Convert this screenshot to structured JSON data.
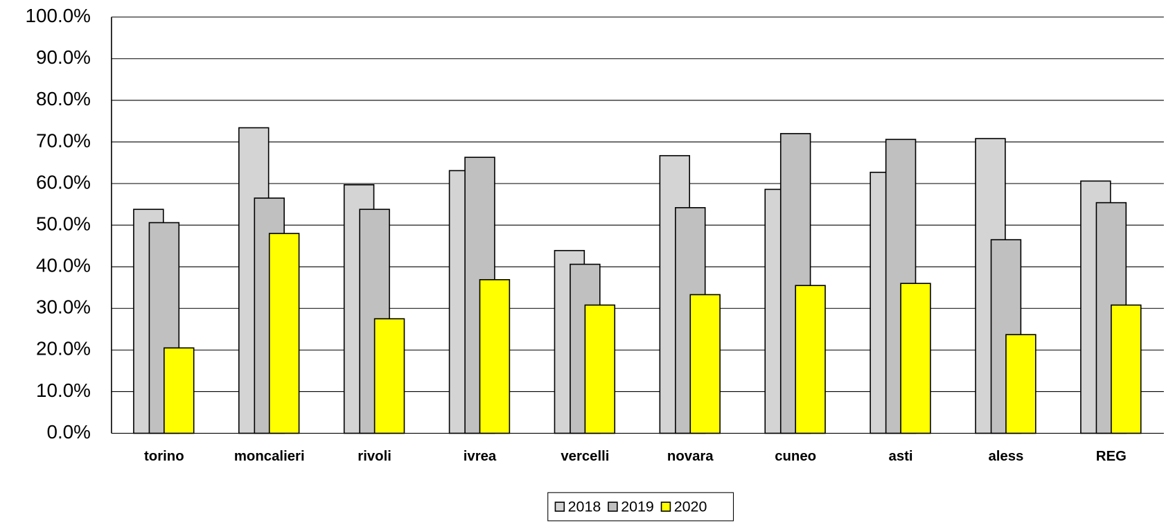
{
  "chart_data": {
    "type": "bar",
    "categories": [
      "torino",
      "moncalieri",
      "rivoli",
      "ivrea",
      "vercelli",
      "novara",
      "cuneo",
      "asti",
      "aless",
      "REG"
    ],
    "series": [
      {
        "name": "2018",
        "color": "#d4d4d4",
        "values": [
          53.8,
          73.4,
          59.7,
          63.1,
          43.9,
          66.7,
          58.6,
          62.7,
          70.8,
          60.6
        ]
      },
      {
        "name": "2019",
        "color": "#c0c0c0",
        "values": [
          50.6,
          56.5,
          53.8,
          66.3,
          40.6,
          54.2,
          72.0,
          70.6,
          46.5,
          55.4
        ]
      },
      {
        "name": "2020",
        "color": "#ffff00",
        "values": [
          20.5,
          48.0,
          27.5,
          36.9,
          30.8,
          33.3,
          35.5,
          36.0,
          23.7,
          30.8
        ]
      }
    ],
    "ylim": [
      0,
      100
    ],
    "yticks": [
      {
        "value": 0,
        "label": "0.0%"
      },
      {
        "value": 10,
        "label": "10.0%"
      },
      {
        "value": 20,
        "label": "20.0%"
      },
      {
        "value": 30,
        "label": "30.0%"
      },
      {
        "value": 40,
        "label": "40.0%"
      },
      {
        "value": 50,
        "label": "50.0%"
      },
      {
        "value": 60,
        "label": "60.0%"
      },
      {
        "value": 70,
        "label": "70.0%"
      },
      {
        "value": 80,
        "label": "80.0%"
      },
      {
        "value": 90,
        "label": "90.0%"
      },
      {
        "value": 100,
        "label": "100.0%"
      }
    ],
    "grid": true,
    "legend": "bottom"
  }
}
